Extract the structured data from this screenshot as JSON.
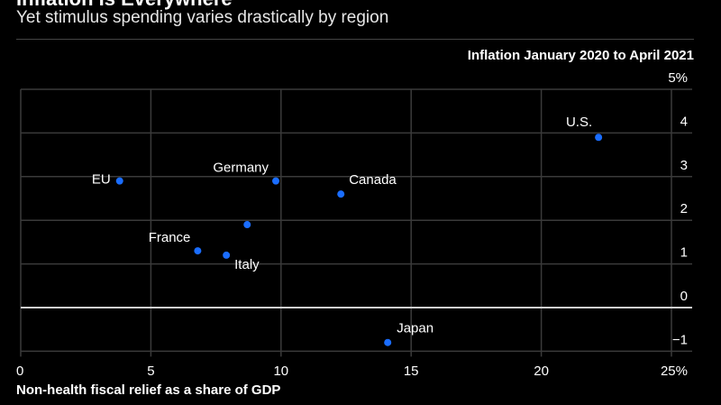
{
  "chart_data": {
    "type": "scatter",
    "title": "Inflation Is Everywhere",
    "subtitle": "Yet stimulus spending varies drastically by region",
    "xlabel": "Non-health fiscal relief as a share of GDP",
    "ylabel": "Inflation January 2020 to April 2021",
    "xlim": [
      0,
      25
    ],
    "ylim": [
      -1,
      5
    ],
    "x_ticks": [
      0,
      5,
      10,
      15,
      20,
      25
    ],
    "x_tick_labels": [
      "0",
      "5",
      "10",
      "15",
      "20",
      "25%"
    ],
    "y_ticks": [
      -1,
      0,
      1,
      2,
      3,
      4,
      5
    ],
    "y_tick_labels": [
      "−1",
      "0",
      "1",
      "2",
      "3",
      "4",
      "5%"
    ],
    "grid": true,
    "point_color": "#1a6dff",
    "points": [
      {
        "label": "EU",
        "x": 3.8,
        "y": 2.9
      },
      {
        "label": "Germany",
        "x": 9.8,
        "y": 2.9
      },
      {
        "label": "Canada",
        "x": 12.3,
        "y": 2.6
      },
      {
        "label": "",
        "x": 8.7,
        "y": 1.9
      },
      {
        "label": "France",
        "x": 6.8,
        "y": 1.3
      },
      {
        "label": "Italy",
        "x": 7.9,
        "y": 1.2
      },
      {
        "label": "U.S.",
        "x": 22.2,
        "y": 3.9
      },
      {
        "label": "Japan",
        "x": 14.1,
        "y": -0.8
      }
    ]
  }
}
